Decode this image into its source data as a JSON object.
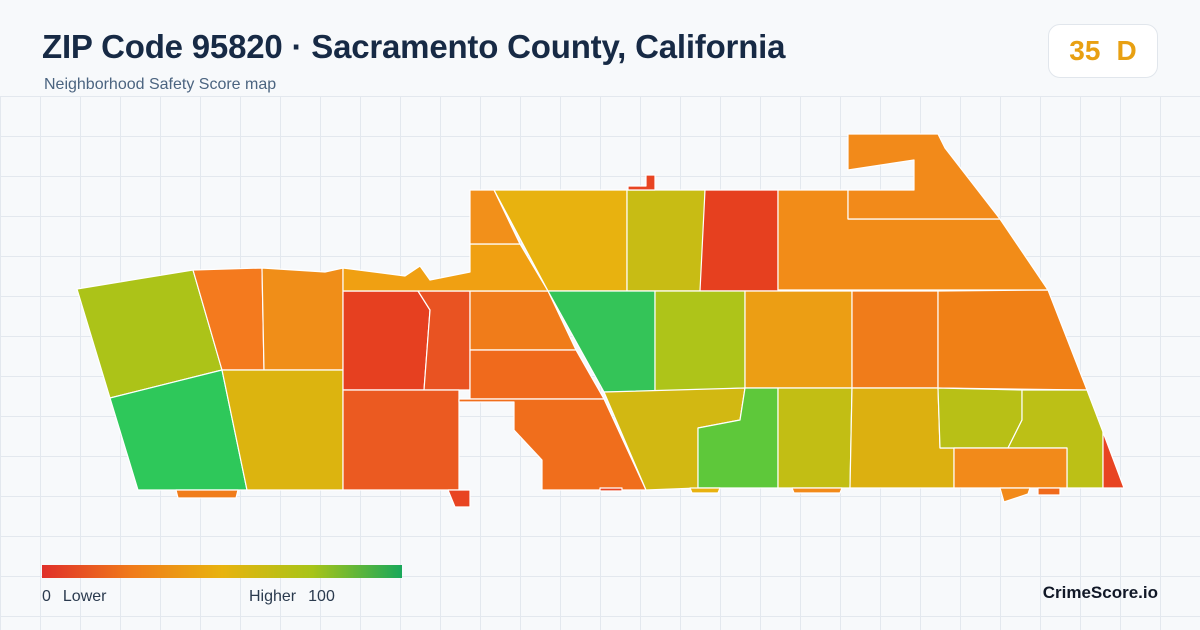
{
  "header": {
    "title": "ZIP Code 95820 · Sacramento County, California",
    "subtitle": "Neighborhood Safety Score map"
  },
  "score": {
    "value": "35",
    "grade": "D",
    "color": "#e8a012"
  },
  "legend": {
    "min_value": "0",
    "min_label": "Lower",
    "max_label": "Higher",
    "max_value": "100",
    "gradient_colors": [
      "#e0302a",
      "#f07b1a",
      "#e8b30f",
      "#a8c418",
      "#19a85a"
    ]
  },
  "brand": "CrimeScore.io",
  "map": {
    "tract_colors": [
      "#acc318",
      "#2ec85a",
      "#f47a1e",
      "#f08e18",
      "#dcb40f",
      "#e64020",
      "#e95322",
      "#f07c1a",
      "#f0a012",
      "#e8b20f",
      "#f06a1c",
      "#eb5a21",
      "#f06e1c",
      "#f2901a",
      "#c8bc14",
      "#e6401f",
      "#f28c18",
      "#34c458",
      "#aec419",
      "#ec9e14",
      "#f07c1a",
      "#f08016",
      "#d2b812",
      "#5ec83a",
      "#c2be14",
      "#dcb010",
      "#b8c016",
      "#bcc016",
      "#f28a1a",
      "#e84422"
    ]
  }
}
